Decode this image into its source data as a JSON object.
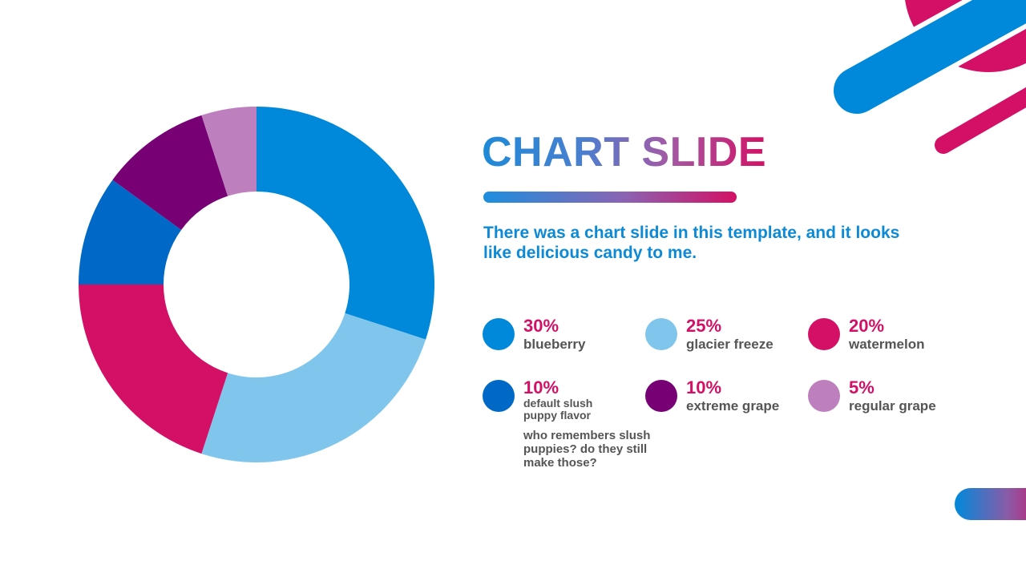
{
  "title": "CHART SLIDE",
  "subtitle": "There was a chart slide in this template, and it looks like delicious candy to me.",
  "note": "who remembers slush puppies? do they still make those?",
  "chart_data": {
    "type": "pie",
    "donut": true,
    "start_angle_deg": 0,
    "direction": "clockwise",
    "slices": [
      {
        "label": "blueberry",
        "value": 30,
        "percent_label": "30%",
        "color": "#0089db"
      },
      {
        "label": "glacier freeze",
        "value": 25,
        "percent_label": "25%",
        "color": "#80c6ec"
      },
      {
        "label": "watermelon",
        "value": 20,
        "percent_label": "20%",
        "color": "#d31065"
      },
      {
        "label": "default slush puppy flavor",
        "value": 10,
        "percent_label": "10%",
        "color": "#0068c6"
      },
      {
        "label": "extreme grape",
        "value": 10,
        "percent_label": "10%",
        "color": "#780075"
      },
      {
        "label": "regular grape",
        "value": 5,
        "percent_label": "5%",
        "color": "#bd7fbd"
      }
    ],
    "legend_position": "right"
  },
  "legend": {
    "items": [
      {
        "pct": "30%",
        "label": "blueberry",
        "color": "#0089db"
      },
      {
        "pct": "25%",
        "label": "glacier freeze",
        "color": "#80c6ec"
      },
      {
        "pct": "20%",
        "label": "watermelon",
        "color": "#d31065"
      },
      {
        "pct": "10%",
        "label": "default slush\npuppy flavor",
        "color": "#0068c6"
      },
      {
        "pct": "10%",
        "label": "extreme grape",
        "color": "#780075"
      },
      {
        "pct": "5%",
        "label": "regular grape",
        "color": "#bd7fbd"
      }
    ]
  },
  "colors": {
    "accent_blue": "#0089db",
    "accent_pink": "#d31065",
    "text_gray": "#555555"
  }
}
